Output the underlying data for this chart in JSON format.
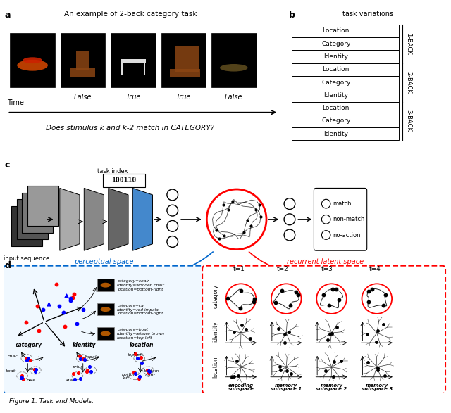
{
  "title_a": "An example of 2-back category task",
  "panel_a_label": "a",
  "panel_b_label": "b",
  "panel_c_label": "c",
  "panel_d_label": "d",
  "question_text": "Does stimulus k and k-2 match in CATEGORY?",
  "time_label": "Time",
  "task_variations_title": "task variations",
  "back_labels": [
    "1-BACK",
    "2-BACK",
    "3-BACK"
  ],
  "task_rows": [
    "Location",
    "Category",
    "Identity",
    "Location",
    "Category",
    "Identity",
    "Location",
    "Category",
    "Identity"
  ],
  "false_true_labels": [
    "False",
    "True",
    "True",
    "False"
  ],
  "task_index_text": "100110",
  "output_labels": [
    "match",
    "non-match",
    "no-action"
  ],
  "input_label": "input sequence",
  "perceptual_space_label": "perceptual space",
  "recurrent_latent_space_label": "recurrent latent space",
  "t_labels": [
    "t=1",
    "t=2",
    "t=3",
    "t=4"
  ],
  "row_labels": [
    "category",
    "identity",
    "location"
  ],
  "subspace_labels": [
    "encoding\nsubspace",
    "memory\nsubspace 1",
    "memory\nsubspace 2",
    "memory\nsubspace 3"
  ],
  "annotation_texts": [
    "category=chair\nidentity=wooden chair\nlocation=bottom-right",
    "category=car\nidentity=red impala\nlocation=bottom-right",
    "category=boat\nidentity=leisure brown\nlocation=top left"
  ],
  "d_bottom_labels": [
    "category",
    "identity",
    "location"
  ],
  "bg_color": "#ffffff",
  "black": "#000000",
  "red": "#cc0000",
  "blue": "#0066cc",
  "light_blue": "#aaddff",
  "figure_caption": "Figure 1. Task and Models.",
  "layer_colors": [
    "#aaaaaa",
    "#888888",
    "#666666",
    "#4488cc"
  ],
  "cnn_box_colors": [
    "#333333",
    "#555555",
    "#777777",
    "#999999"
  ]
}
